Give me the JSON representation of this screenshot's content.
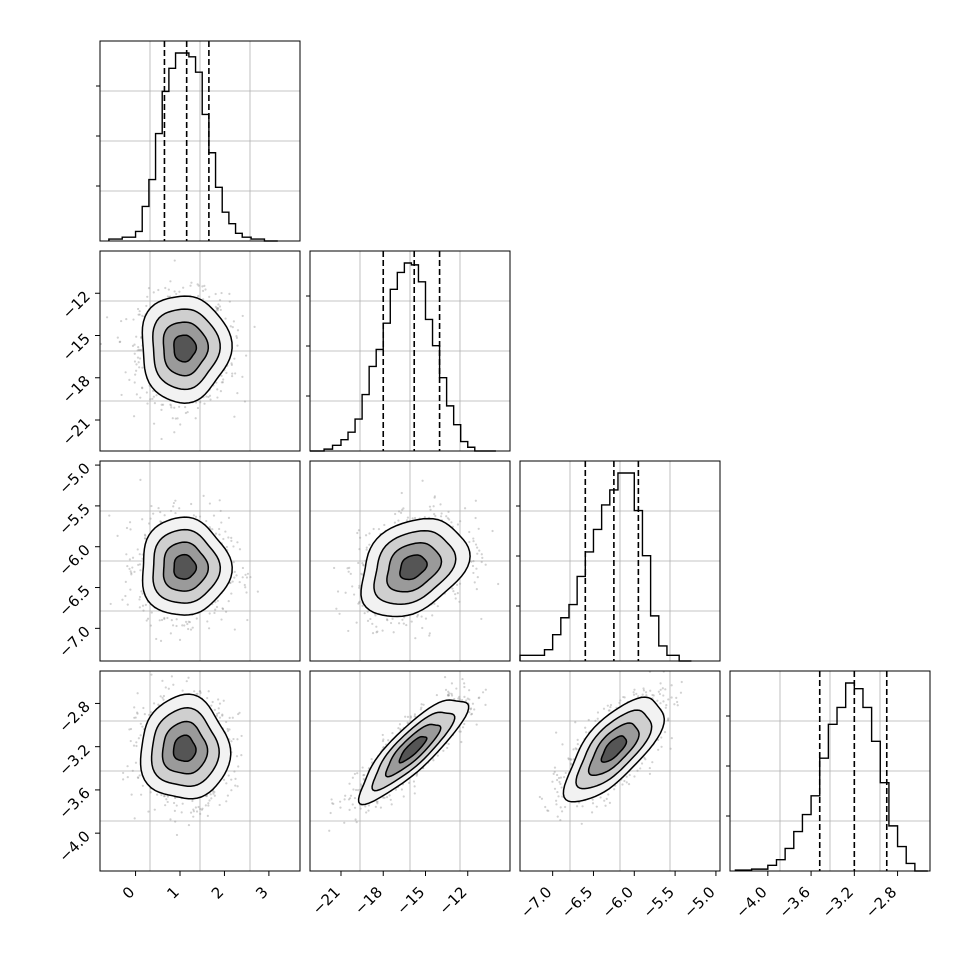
{
  "chart_data": {
    "type": "corner",
    "grid": true,
    "parameters": [
      {
        "range": [
          -0.8,
          3.7
        ],
        "ticks": [
          0,
          1,
          2,
          3
        ],
        "tick_labels": [
          "0",
          "1",
          "2",
          "3"
        ],
        "quantiles": [
          0.65,
          1.15,
          1.65
        ],
        "hist_edges": [
          -0.6,
          -0.3,
          0.0,
          0.15,
          0.3,
          0.45,
          0.6,
          0.75,
          0.9,
          1.05,
          1.2,
          1.35,
          1.5,
          1.65,
          1.8,
          1.95,
          2.1,
          2.25,
          2.4,
          2.6,
          2.9,
          3.2
        ],
        "hist_counts": [
          0.01,
          0.02,
          0.05,
          0.18,
          0.32,
          0.56,
          0.78,
          0.9,
          0.98,
          0.98,
          0.96,
          0.88,
          0.66,
          0.46,
          0.28,
          0.15,
          0.09,
          0.04,
          0.02,
          0.01,
          0.0
        ]
      },
      {
        "range": [
          -23.2,
          -9.0
        ],
        "ticks": [
          -21,
          -18,
          -15,
          -12
        ],
        "tick_labels": [
          "−21",
          "−18",
          "−15",
          "−12"
        ],
        "quantiles": [
          -18.0,
          -15.8,
          -14.0
        ],
        "hist_edges": [
          -23.2,
          -22.2,
          -21.6,
          -21.0,
          -20.5,
          -20.0,
          -19.5,
          -19.0,
          -18.5,
          -18.0,
          -17.5,
          -17.0,
          -16.5,
          -16.0,
          -15.5,
          -15.0,
          -14.5,
          -14.0,
          -13.5,
          -13.0,
          -12.5,
          -12.0,
          -11.5,
          -11.0,
          -10.0
        ],
        "hist_counts": [
          0.0,
          0.01,
          0.03,
          0.06,
          0.1,
          0.17,
          0.3,
          0.45,
          0.54,
          0.68,
          0.86,
          0.95,
          1.0,
          0.99,
          0.9,
          0.7,
          0.56,
          0.39,
          0.24,
          0.14,
          0.05,
          0.02,
          0.0,
          0.0
        ]
      },
      {
        "range": [
          -7.4,
          -4.95
        ],
        "ticks": [
          -7.0,
          -6.5,
          -6.0,
          -5.5,
          -5.0
        ],
        "tick_labels": [
          "−7.0",
          "−6.5",
          "−6.0",
          "−5.5",
          "−5.0"
        ],
        "quantiles": [
          -6.6,
          -6.25,
          -5.95
        ],
        "hist_edges": [
          -7.4,
          -7.1,
          -7.0,
          -6.9,
          -6.8,
          -6.7,
          -6.6,
          -6.5,
          -6.4,
          -6.3,
          -6.2,
          -6.1,
          -6.0,
          -5.9,
          -5.8,
          -5.7,
          -5.6,
          -5.45,
          -5.3
        ],
        "hist_counts": [
          0.03,
          0.06,
          0.14,
          0.23,
          0.3,
          0.45,
          0.58,
          0.7,
          0.83,
          0.91,
          1.0,
          1.0,
          0.8,
          0.56,
          0.24,
          0.08,
          0.03,
          0.0
        ]
      },
      {
        "range": [
          -4.35,
          -2.5
        ],
        "ticks": [
          -4.0,
          -3.6,
          -3.2,
          -2.8
        ],
        "tick_labels": [
          "−4.0",
          "−3.6",
          "−3.2",
          "−2.8"
        ],
        "quantiles": [
          -3.52,
          -3.2,
          -2.9
        ],
        "hist_edges": [
          -4.3,
          -4.15,
          -4.0,
          -3.92,
          -3.84,
          -3.76,
          -3.68,
          -3.6,
          -3.52,
          -3.44,
          -3.36,
          -3.28,
          -3.2,
          -3.12,
          -3.04,
          -2.96,
          -2.88,
          -2.8,
          -2.72,
          -2.64,
          -2.52
        ],
        "hist_counts": [
          0.005,
          0.01,
          0.03,
          0.06,
          0.12,
          0.21,
          0.3,
          0.4,
          0.6,
          0.78,
          0.87,
          1.0,
          0.97,
          0.87,
          0.69,
          0.47,
          0.24,
          0.13,
          0.04,
          0.0
        ]
      }
    ],
    "pairs": [
      {
        "row": 1,
        "col": 0,
        "center": [
          1.1,
          -15.9
        ],
        "sd": [
          0.5,
          1.9
        ],
        "corr": 0.0
      },
      {
        "row": 2,
        "col": 0,
        "center": [
          1.1,
          -6.25
        ],
        "sd": [
          0.5,
          0.3
        ],
        "corr": 0.0
      },
      {
        "row": 2,
        "col": 1,
        "center": [
          -15.9,
          -6.25
        ],
        "sd": [
          1.9,
          0.3
        ],
        "corr": 0.3
      },
      {
        "row": 3,
        "col": 0,
        "center": [
          1.1,
          -3.22
        ],
        "sd": [
          0.5,
          0.24
        ],
        "corr": 0.0
      },
      {
        "row": 3,
        "col": 1,
        "center": [
          -15.9,
          -3.22
        ],
        "sd": [
          1.9,
          0.24
        ],
        "corr": 0.85
      },
      {
        "row": 3,
        "col": 2,
        "center": [
          -6.25,
          -3.22
        ],
        "sd": [
          0.3,
          0.24
        ],
        "corr": 0.7
      }
    ],
    "contour_levels_sigma": [
      0.5,
      1.0,
      1.5,
      2.0
    ]
  }
}
